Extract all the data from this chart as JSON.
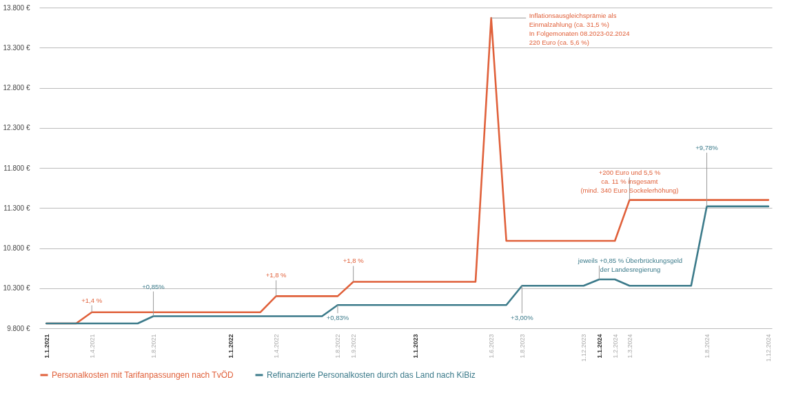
{
  "chart_data": {
    "type": "line",
    "series": [
      {
        "name": "Personalkosten mit Tarifanpassungen nach TvÖD",
        "color": "#e0603a",
        "x": [
          "2021-01-01",
          "2021-03-01",
          "2021-04-01",
          "2022-03-01",
          "2022-04-01",
          "2022-08-01",
          "2022-09-01",
          "2023-05-01",
          "2023-06-01",
          "2023-07-01",
          "2024-02-01",
          "2024-03-01",
          "2024-12-01"
        ],
        "values": [
          9860,
          9860,
          10000,
          10000,
          10200,
          10200,
          10380,
          10380,
          13670,
          10890,
          10890,
          11400,
          11400
        ]
      },
      {
        "name": "Refinanzierte Personalkosten durch das Land nach KiBiz",
        "color": "#3b7a8a",
        "x": [
          "2021-01-01",
          "2021-07-01",
          "2021-08-01",
          "2022-07-01",
          "2022-08-01",
          "2023-07-01",
          "2023-08-01",
          "2023-12-01",
          "2024-01-01",
          "2024-02-01",
          "2024-03-01",
          "2024-07-01",
          "2024-08-01",
          "2024-12-01"
        ],
        "values": [
          9860,
          9860,
          9950,
          9950,
          10090,
          10090,
          10330,
          10330,
          10410,
          10410,
          10330,
          10330,
          11320,
          11320
        ]
      }
    ],
    "xlim": [
      "2020-12-18",
      "2024-12-08"
    ],
    "xticks": [
      {
        "value": "2021-01-01",
        "label": "1.1.2021"
      },
      {
        "value": "2021-04-01",
        "label": "1.4.2021"
      },
      {
        "value": "2021-08-01",
        "label": "1.8.2021"
      },
      {
        "value": "2022-01-01",
        "label": "1.1.2022"
      },
      {
        "value": "2022-04-01",
        "label": "1.4.2022"
      },
      {
        "value": "2022-08-01",
        "label": "1.8.2022"
      },
      {
        "value": "2022-09-01",
        "label": "1.9.2022"
      },
      {
        "value": "2023-01-01",
        "label": "1.1.2023"
      },
      {
        "value": "2023-06-01",
        "label": "1.6.2023"
      },
      {
        "value": "2023-08-01",
        "label": "1.8.2023"
      },
      {
        "value": "2023-12-01",
        "label": "1.12.2023"
      },
      {
        "value": "2024-01-01",
        "label": "1.1.2024"
      },
      {
        "value": "2024-02-01",
        "label": "1.2.2024"
      },
      {
        "value": "2024-03-01",
        "label": "1.3.2024"
      },
      {
        "value": "2024-08-01",
        "label": "1.8.2024"
      },
      {
        "value": "2024-12-01",
        "label": "1.12.2024"
      }
    ],
    "ylim": [
      9800,
      13800
    ],
    "yticks": [
      {
        "value": 9800,
        "label": "9.800 €"
      },
      {
        "value": 10300,
        "label": "10.300 €"
      },
      {
        "value": 10800,
        "label": "10.800 €"
      },
      {
        "value": 11300,
        "label": "11.300 €"
      },
      {
        "value": 11800,
        "label": "11.800 €"
      },
      {
        "value": 12300,
        "label": "12.300 €"
      },
      {
        "value": 12800,
        "label": "12.800 €"
      },
      {
        "value": 13300,
        "label": "13.300 €"
      },
      {
        "value": 13800,
        "label": "13.800 €"
      }
    ],
    "grid": "y",
    "legend": "bottom",
    "marker": "none",
    "line_style": "solid",
    "annotations": [
      {
        "text": "+1,4 %",
        "x": "2021-04-01",
        "y": 10000
      },
      {
        "text": "+0,85%",
        "x": "2021-08-01",
        "y": 9950
      },
      {
        "text": "+1,8 %",
        "x": "2022-04-01",
        "y": 10200
      },
      {
        "text": "+0,83%",
        "x": "2022-08-01",
        "y": 10090
      },
      {
        "text": "+1,8 %",
        "x": "2022-09-01",
        "y": 10380
      },
      {
        "text": "Inflationsausgleichsprämie als\nEinmalzahlung (ca. 31,5 %)\nIn Folgemonaten 08.2023-02.2024\n220 Euro (ca. 5,6 %)",
        "x": "2023-06-01",
        "y": 13670
      },
      {
        "text": "+3,00%",
        "x": "2023-08-01",
        "y": 10330
      },
      {
        "text": "jeweils +0,85 % Überbrückungsgeld\nder Landesregierung",
        "x": "2024-01-01",
        "y": 10410
      },
      {
        "text": "+200 Euro und 5,5 %\nca. 11 % insgesamt\n(mind. 340 Euro Sockelerhöhung)",
        "x": "2024-03-01",
        "y": 11400
      },
      {
        "text": "+9,78%",
        "x": "2024-08-01",
        "y": 11320
      }
    ]
  }
}
